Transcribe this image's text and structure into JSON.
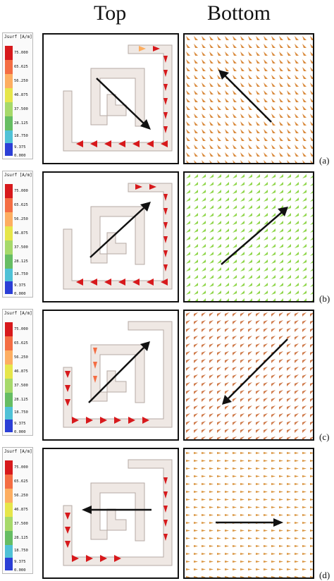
{
  "headers": {
    "top": "Top",
    "bottom": "Bottom"
  },
  "legend": {
    "title": "Jsurf [A/m]",
    "ticks": [
      "75.000",
      "65.625",
      "56.250",
      "46.875",
      "37.500",
      "28.125",
      "18.750",
      "9.375",
      "0.000"
    ],
    "colors": [
      "#d7191c",
      "#f46d43",
      "#fdae61",
      "#e6e64a",
      "#a6d96a",
      "#66bd63",
      "#4fc1d6",
      "#5b8fe0",
      "#2b3fd6"
    ]
  },
  "rows": [
    {
      "label": "(a)",
      "bottom_color": "#d98a3c",
      "top_arrow": "down-right",
      "bottom_arrow": "up-left"
    },
    {
      "label": "(b)",
      "bottom_color": "#8fd64a",
      "top_arrow": "up-right",
      "bottom_arrow": "up-right"
    },
    {
      "label": "(c)",
      "bottom_color": "#cf7a4a",
      "top_arrow": "up-right",
      "bottom_arrow": "down-left"
    },
    {
      "label": "(d)",
      "bottom_color": "#d9943f",
      "top_arrow": "left",
      "bottom_arrow": "right"
    }
  ]
}
